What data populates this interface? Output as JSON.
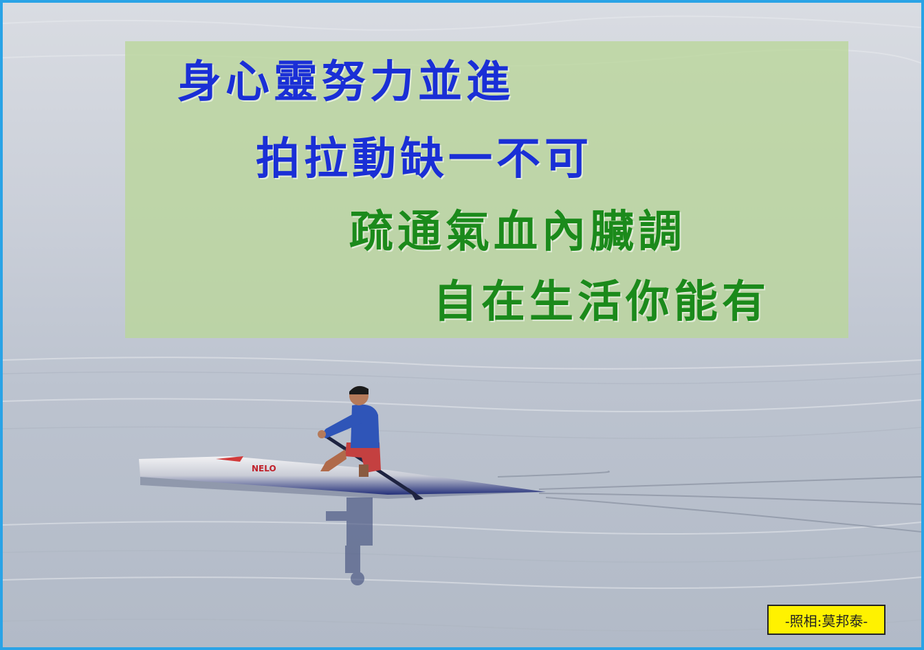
{
  "poem": {
    "line1": "身心靈努力並進",
    "line2": "拍拉動缺一不可",
    "line3": "疏通氣血內臟調",
    "line4": "自在生活你能有"
  },
  "credit": "-照相:莫邦泰-",
  "boat_label": "NELO",
  "colors": {
    "frame": "#2aa3e6",
    "line_blue": "#1a2fd6",
    "line_green": "#1b8a1b",
    "credit_bg": "#fff200",
    "overlay": "#bad69a"
  }
}
